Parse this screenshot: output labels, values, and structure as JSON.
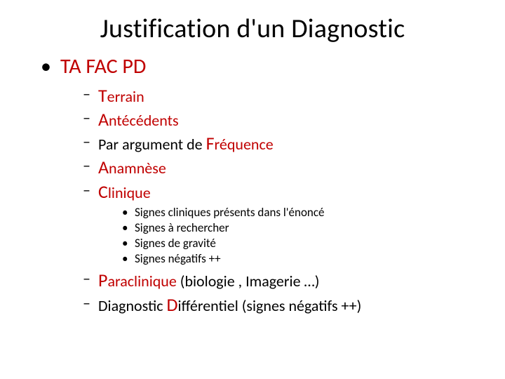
{
  "title": "Justification d'un Diagnostic",
  "l1": {
    "label": "TA FAC PD"
  },
  "l2": {
    "terrain": {
      "big": "T",
      "rest": "errain"
    },
    "antecedents": {
      "big": "A",
      "rest": "ntécédents"
    },
    "frequence": {
      "pre": "Par argument de ",
      "big": "F",
      "rest": "réquence"
    },
    "anamnese": {
      "big": "A",
      "rest": "namnèse"
    },
    "clinique": {
      "big": "C",
      "rest": "linique"
    },
    "paraclinique": {
      "big": "P",
      "rest": "araclinique ",
      "paren": "(biologie , Imagerie …)"
    },
    "differentiel": {
      "pre": "Diagnostic ",
      "big": "D",
      "rest": "ifférentiel (signes négatifs ++)"
    }
  },
  "l3": {
    "s1": "Signes cliniques présents dans l'énoncé",
    "s2": "Signes à rechercher",
    "s3": "Signes de gravité",
    "s4": "Signes négatifs ++"
  }
}
